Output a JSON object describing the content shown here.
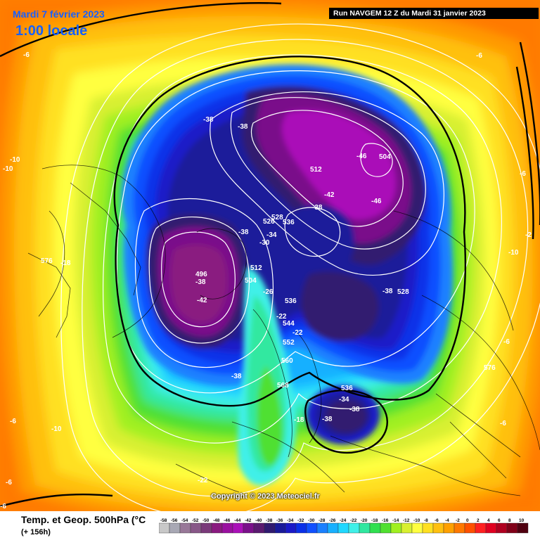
{
  "header": {
    "date_line": "Mardi 7 février 2023",
    "time_line": "1:00 locale",
    "run_info": "Run NAVGEM 12 Z du Mardi 31 janvier 2023"
  },
  "footer": {
    "title": "Temp. et Geop. 500hPa (°C",
    "lead_time": "(+ 156h)",
    "copyright": "Copyright © 2023 Meteociel.fr"
  },
  "color_scale": {
    "ticks": [
      "-58",
      "-56",
      "-54",
      "-52",
      "-50",
      "-48",
      "-46",
      "-44",
      "-42",
      "-40",
      "-38",
      "-36",
      "-34",
      "-32",
      "-30",
      "-28",
      "-26",
      "-24",
      "-22",
      "-20",
      "-18",
      "-16",
      "-14",
      "-12",
      "-10",
      "-8",
      "-6",
      "-4",
      "-2",
      "0",
      "2",
      "4",
      "6",
      "8",
      "10"
    ],
    "colors": [
      "#c8c8c8",
      "#a8a8b4",
      "#987898",
      "#885888",
      "#7a3a7a",
      "#8a1a80",
      "#9a10a0",
      "#aa10b8",
      "#7a108a",
      "#5a1a70",
      "#301a70",
      "#1a1a9a",
      "#1a1ac8",
      "#0a30e8",
      "#1050ff",
      "#1a80ff",
      "#18b0ff",
      "#20d8ff",
      "#40f0e8",
      "#30e8a0",
      "#30e050",
      "#50e030",
      "#a0f020",
      "#d8f030",
      "#ffff40",
      "#ffe020",
      "#ffc010",
      "#ffa000",
      "#ff7800",
      "#ff5000",
      "#ff2020",
      "#e00020",
      "#b00020",
      "#800018",
      "#500010"
    ]
  },
  "contour_labels": [
    {
      "text": "504"
    },
    {
      "text": "512"
    },
    {
      "text": "528"
    },
    {
      "text": "526"
    },
    {
      "text": "536"
    },
    {
      "text": "496"
    },
    {
      "text": "504"
    },
    {
      "text": "512"
    },
    {
      "text": "536"
    },
    {
      "text": "544"
    },
    {
      "text": "552"
    },
    {
      "text": "560"
    },
    {
      "text": "568"
    },
    {
      "text": "576"
    },
    {
      "text": "528"
    },
    {
      "text": "536"
    },
    {
      "text": "576"
    }
  ],
  "temperature_labels": [
    {
      "text": "-38"
    },
    {
      "text": "-38"
    },
    {
      "text": "-46"
    },
    {
      "text": "-42"
    },
    {
      "text": "-38"
    },
    {
      "text": "-46"
    },
    {
      "text": "-34"
    },
    {
      "text": "-38"
    },
    {
      "text": "-30"
    },
    {
      "text": "-38"
    },
    {
      "text": "-42"
    },
    {
      "text": "-26"
    },
    {
      "text": "-22"
    },
    {
      "text": "-22"
    },
    {
      "text": "-38"
    },
    {
      "text": "-38"
    },
    {
      "text": "-34"
    },
    {
      "text": "-38"
    },
    {
      "text": "-38"
    },
    {
      "text": "-18"
    },
    {
      "text": "-18"
    },
    {
      "text": "-22"
    },
    {
      "text": "-10"
    },
    {
      "text": "-10"
    },
    {
      "text": "-6"
    },
    {
      "text": "-6"
    },
    {
      "text": "-6"
    },
    {
      "text": "-2"
    },
    {
      "text": "-10"
    },
    {
      "text": "-6"
    },
    {
      "text": "-6"
    },
    {
      "text": "-6"
    },
    {
      "text": "-10"
    },
    {
      "text": "-6"
    },
    {
      "text": "-6"
    }
  ]
}
